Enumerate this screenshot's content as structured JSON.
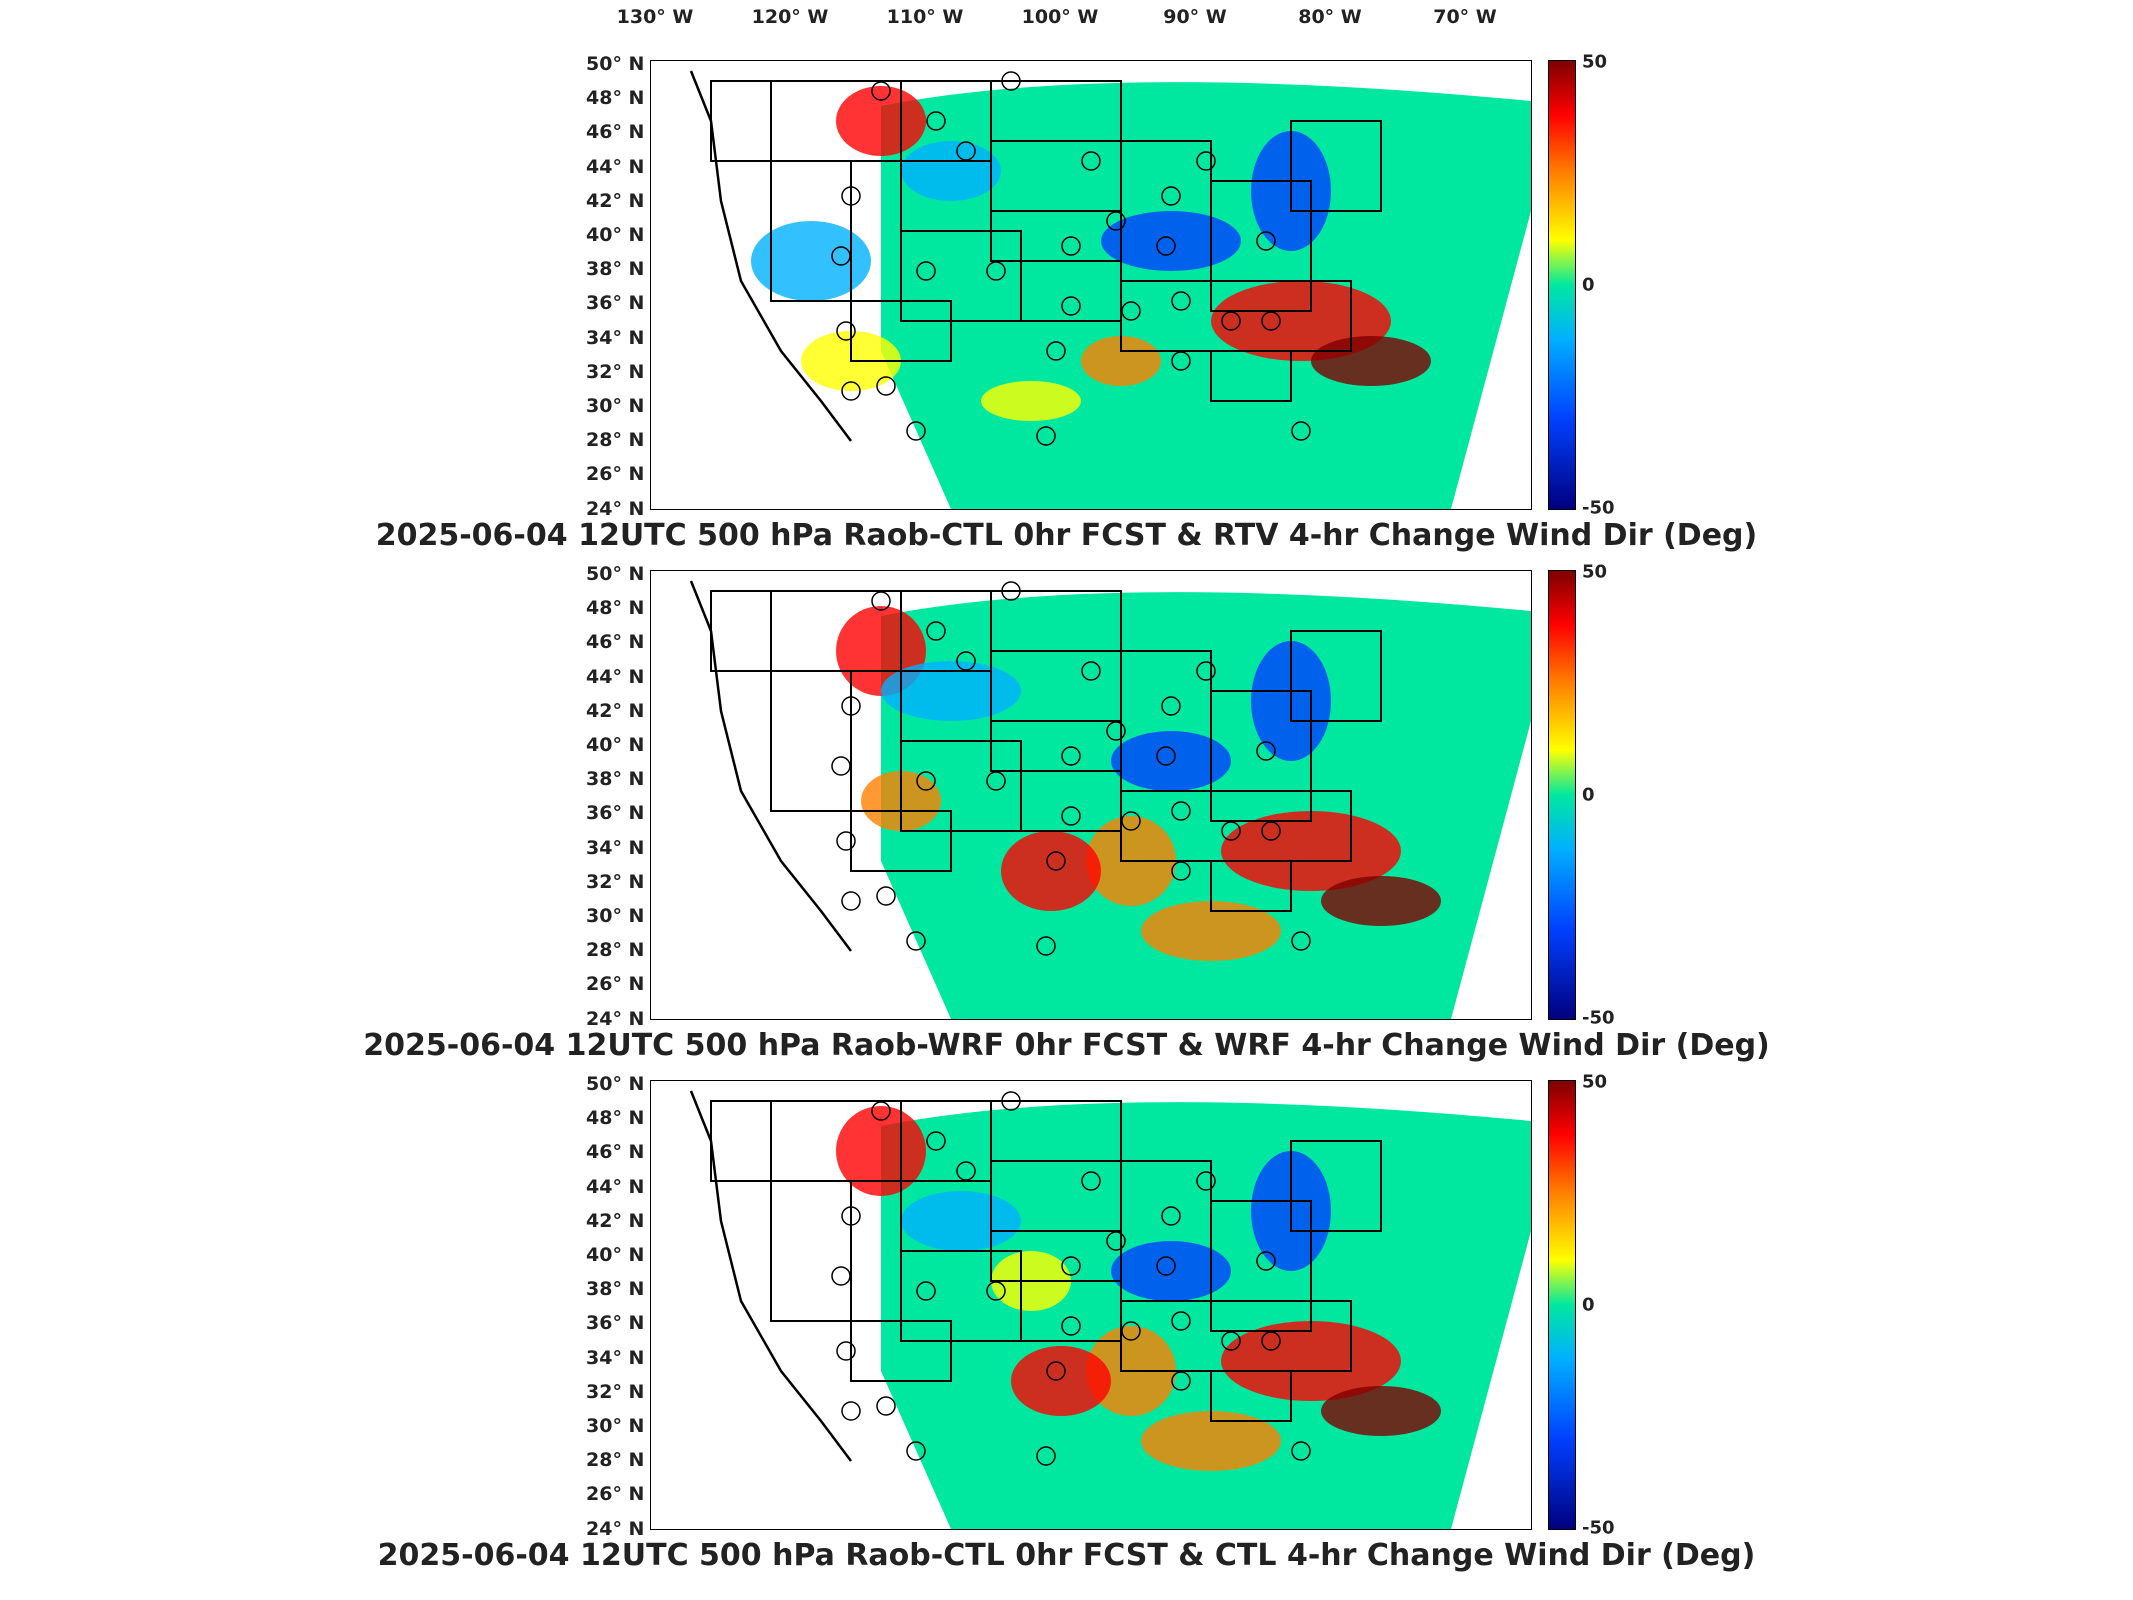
{
  "longitude_labels": [
    "130° W",
    "120° W",
    "110° W",
    "100° W",
    "90° W",
    "80° W",
    "70° W"
  ],
  "latitude_labels": [
    "50° N",
    "48° N",
    "46° N",
    "44° N",
    "42° N",
    "40° N",
    "38° N",
    "36° N",
    "34° N",
    "32° N",
    "30° N",
    "28° N",
    "26° N",
    "24° N"
  ],
  "colorbar": {
    "max_label": "50",
    "mid_label": "0",
    "min_label": "-50"
  },
  "panels": [
    {
      "title": "2025-06-04 12UTC 500 hPa Raob-CTL 0hr FCST & RTV 4-hr Change Wind Dir (Deg)"
    },
    {
      "title": "2025-06-04 12UTC 500 hPa Raob-WRF 0hr FCST & WRF 4-hr Change Wind Dir (Deg)"
    },
    {
      "title": "2025-06-04 12UTC 500 hPa Raob-CTL 0hr FCST & CTL 4-hr Change Wind Dir (Deg)"
    }
  ],
  "colors": {
    "max": "#7f0000",
    "high": "#ff0000",
    "warm": "#ff8000",
    "yellow": "#ffff00",
    "zero": "#00e8a0",
    "cool": "#00b0ff",
    "low": "#0040ff",
    "min": "#00007f"
  }
}
